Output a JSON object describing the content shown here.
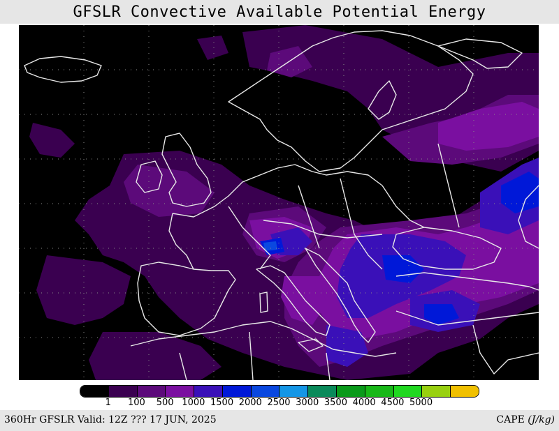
{
  "title": "GFSLR Convective Available Potential Energy",
  "footer": {
    "left": "360Hr GFSLR Valid: 12Z ??? 17 JUN, 2025",
    "right_var": "CAPE",
    "right_units": "(J/kg)"
  },
  "legend": {
    "colors": [
      "#000000",
      "#3a0050",
      "#5c0a7a",
      "#7a0fa0",
      "#3a10b8",
      "#0018d8",
      "#0a48e0",
      "#1496e6",
      "#0a8a5a",
      "#0a9a1a",
      "#18b818",
      "#20d820",
      "#98d010",
      "#f0c000"
    ],
    "labels": [
      "1",
      "100",
      "500",
      "1000",
      "1500",
      "2000",
      "2500",
      "3000",
      "3500",
      "4000",
      "4500",
      "5000"
    ]
  },
  "map": {
    "background": "#000000",
    "coastline_color": "#e8e8e8",
    "grid_color": "#8a8a8a"
  }
}
